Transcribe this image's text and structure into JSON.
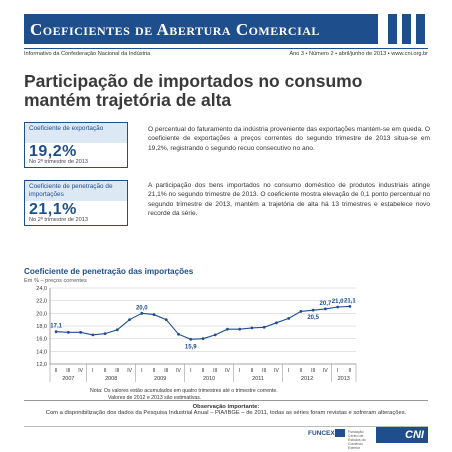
{
  "masthead": {
    "title": "Coeficientes de Abertura Comercial"
  },
  "subline": {
    "left": "Informativo da Confederação Nacional da Indústria",
    "right": "Ano 3 • Número 2 • abril/junho de 2013 • www.cni.org.br"
  },
  "headline": {
    "line1": "Participação de importados no consumo",
    "line2": "mantém trajetória de alta"
  },
  "kpis": [
    {
      "label": "Coeficiente de exportação",
      "value": "19,2%",
      "sub": "No 2º trimestre de 2013"
    },
    {
      "label": "Coeficiente de penetração de importações",
      "value": "21,1%",
      "sub": "No 2º trimestre de 2013"
    }
  ],
  "paragraphs": [
    "O percentual do faturamento da indústria proveniente das exportações mantém-se em queda. O coeficiente de exportações a preços correntes do segundo trimestre de 2013 situa-se em 19,2%, registrando o segundo recuo consecutivo no ano.",
    "A participação dos bens importados no consumo doméstico de produtos industriais atinge 21,1% no segundo trimestre de 2013. O coeficiente mostra elevação de 0,1 ponto percentual no segundo trimestre de 2013, mantém a trajetória de alta há 13 trimestres e estabelece novo recorde da série."
  ],
  "chart_data": {
    "type": "line",
    "title": "Coeficiente de penetração das importações",
    "subtitle": "Em % – preços correntes",
    "ylim": [
      12.0,
      24.0
    ],
    "yticks": [
      "12,0",
      "14,0",
      "16,0",
      "18,0",
      "20,0",
      "22,0",
      "24,0"
    ],
    "quarters": [
      "II",
      "III",
      "IV",
      "I",
      "II",
      "III",
      "IV",
      "I",
      "II",
      "III",
      "IV",
      "I",
      "II",
      "III",
      "IV",
      "I",
      "II",
      "III",
      "IV",
      "I",
      "II",
      "III",
      "IV",
      "I",
      "II"
    ],
    "years": [
      {
        "label": "2007",
        "count": 3
      },
      {
        "label": "2008",
        "count": 4
      },
      {
        "label": "2009",
        "count": 4
      },
      {
        "label": "2010",
        "count": 4
      },
      {
        "label": "2011",
        "count": 4
      },
      {
        "label": "2012",
        "count": 4
      },
      {
        "label": "2013",
        "count": 2
      }
    ],
    "series": [
      {
        "values": [
          17.1,
          17.0,
          17.0,
          16.6,
          16.8,
          17.4,
          19.0,
          20.0,
          19.8,
          19.0,
          16.7,
          15.9,
          16.0,
          16.6,
          17.5,
          17.5,
          17.7,
          17.8,
          18.5,
          19.2,
          20.3,
          20.5,
          20.7,
          21.0,
          21.1
        ],
        "labels": {
          "0": "17,1",
          "7": "20,0",
          "11": "15,9",
          "21": "20,5",
          "22": "20,7",
          "23": "21,0",
          "24": "21,1"
        }
      }
    ],
    "grid": true,
    "color": "#1f4e8c"
  },
  "note": {
    "line1": "Nota:  Os valores estão acumulados em quatro trimestres até o trimestre corrente.",
    "line2": "Valores de 2012 e 2013 são estimativas."
  },
  "important": {
    "title": "Observação importante:",
    "text": "Com a disponibilização dos dados da Pesquisa Industrial Anual – PIA/IBGE – de 2011, todas as séries foram revistas e sofreram alterações."
  },
  "footer": {
    "funcex": "FUNCEX",
    "seal": "Fundação Centro de Estudos do Comércio Exterior",
    "cni": "CNI"
  }
}
